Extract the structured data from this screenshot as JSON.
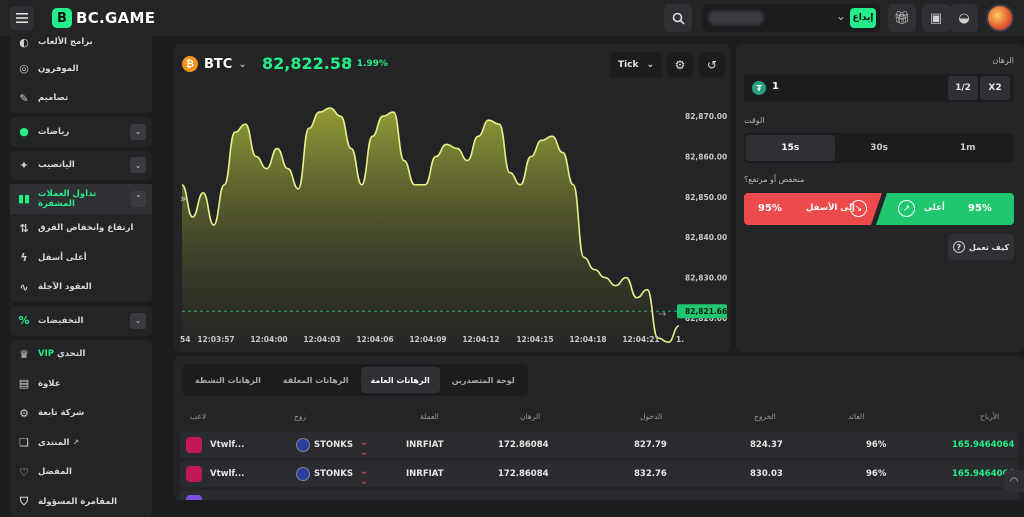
{
  "topbar": {
    "logo_text": "BC.GAME",
    "deposit_label": "إيداع"
  },
  "sidebar": {
    "items": [
      {
        "label": "برامج الألعاب",
        "icon": "poker-chip-icon"
      },
      {
        "label": "الموفرون",
        "icon": "provider-icon"
      },
      {
        "label": "تصاميم",
        "icon": "palette-icon"
      },
      {
        "label": "رياضات",
        "icon": "ball-icon"
      },
      {
        "label": "اليانصيب",
        "icon": "ticket-icon"
      },
      {
        "label": "تداول العملات المشفرة",
        "icon": "candles-icon"
      },
      {
        "label": "ارتفاع وانخفاض الفرق",
        "icon": "updown-icon"
      },
      {
        "label": "أعلى أسفل",
        "icon": "bolt-icon"
      },
      {
        "label": "العقود الآجلة",
        "icon": "pulse-icon"
      },
      {
        "label": "التخفيضات",
        "icon": "discount-icon"
      },
      {
        "label": "التحدي",
        "vip": "VIP",
        "icon": "crown-icon"
      },
      {
        "label": "علاوة",
        "icon": "gift-icon"
      },
      {
        "label": "شركة تابعة",
        "icon": "affiliate-icon"
      },
      {
        "label": "المنتدى",
        "icon": "forum-icon"
      },
      {
        "label": "المفضل",
        "icon": "heart-icon"
      },
      {
        "label": "المقامرة المسؤولة",
        "icon": "shield-icon"
      }
    ]
  },
  "chart": {
    "coin": "BTC",
    "price": "82,822.58",
    "change": "1.99%",
    "mode": "Tick",
    "current_price_label": "82,821.66"
  },
  "chart_data": {
    "type": "area",
    "y_ticks": [
      "82,870.00",
      "82,860.00",
      "82,850.00",
      "82,840.00",
      "82,830.00",
      "82,820.00"
    ],
    "ylim": [
      82818,
      82874
    ],
    "x_ticks": [
      "54",
      "12:03:57",
      "12:04:00",
      "12:04:03",
      "12:04:06",
      "12:04:09",
      "12:04:12",
      "12:04:15",
      "12:04:18",
      "12:04:21",
      "1."
    ],
    "series": [
      {
        "values": [
          82853,
          82845,
          82851,
          82843,
          82853,
          82866,
          82868,
          82860,
          82857,
          82862,
          82857,
          82852,
          82867,
          82871,
          82872,
          82870,
          82862,
          82853,
          82865,
          82870,
          82871,
          82859,
          82853,
          82853,
          82860,
          82863,
          82862,
          82859,
          82865,
          82869,
          82868,
          82856,
          82853,
          82860,
          82864,
          82865,
          82861,
          82853,
          82835,
          82832,
          82830,
          82828,
          82830,
          82825,
          82827,
          82815,
          82814,
          82818
        ]
      }
    ],
    "color": "#e8ef8a"
  },
  "bet": {
    "amount_label": "الرهان",
    "amount": "1",
    "half": "1/2",
    "double": "X2",
    "time_label": "الوقت",
    "times": [
      "15s",
      "30s",
      "1m"
    ],
    "direction_label": "منخفض أو مرتفع؟",
    "low_label": "إلى الأسفل",
    "low_pct": "95%",
    "high_label": "أعلى",
    "high_pct": "95%",
    "how_label": "كيف تعمل"
  },
  "bets_table": {
    "tabs": [
      "الرهانات النشطة",
      "الرهانات المغلقة",
      "الرهانات العامة",
      "لوحة المتصدرين"
    ],
    "headers": [
      "لاعب",
      "زوج",
      "العملة",
      "الرهان",
      "الدخول",
      "الخروج",
      "العائد",
      "الأرباح"
    ],
    "rows": [
      {
        "player": "Vtwlf...",
        "pair": "STONKS",
        "currency": "INRFIAT",
        "bet": "172.86084",
        "entry": "827.79",
        "exit": "824.37",
        "return": "96%",
        "profit": "165.9464064"
      },
      {
        "player": "Vtwlf...",
        "pair": "STONKS",
        "currency": "INRFIAT",
        "bet": "172.86084",
        "entry": "832.76",
        "exit": "830.03",
        "return": "96%",
        "profit": "165.9464064"
      }
    ]
  }
}
